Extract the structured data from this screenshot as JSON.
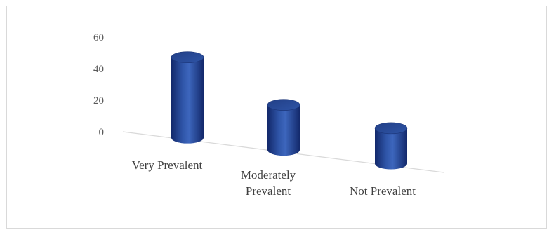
{
  "chart_data": {
    "type": "bar",
    "style": "3d-cylinder",
    "title": "",
    "xlabel": "",
    "ylabel": "",
    "categories": [
      "Very Prevalent",
      "Moderately Prevalent",
      "Not Prevalent"
    ],
    "category_lines": [
      [
        "Very Prevalent"
      ],
      [
        "Moderately",
        "Prevalent"
      ],
      [
        "Not Prevalent"
      ]
    ],
    "values": [
      50,
      28,
      22
    ],
    "ylim": [
      0,
      60
    ],
    "yticks": [
      0,
      20,
      40,
      60
    ],
    "legend": "none",
    "grid": false,
    "colors": {
      "bar": "#2f55a8",
      "bar_dark": "#12286a",
      "bar_light": "#4a72c8",
      "axis": "#d9d9d9",
      "text": "#404040"
    }
  }
}
